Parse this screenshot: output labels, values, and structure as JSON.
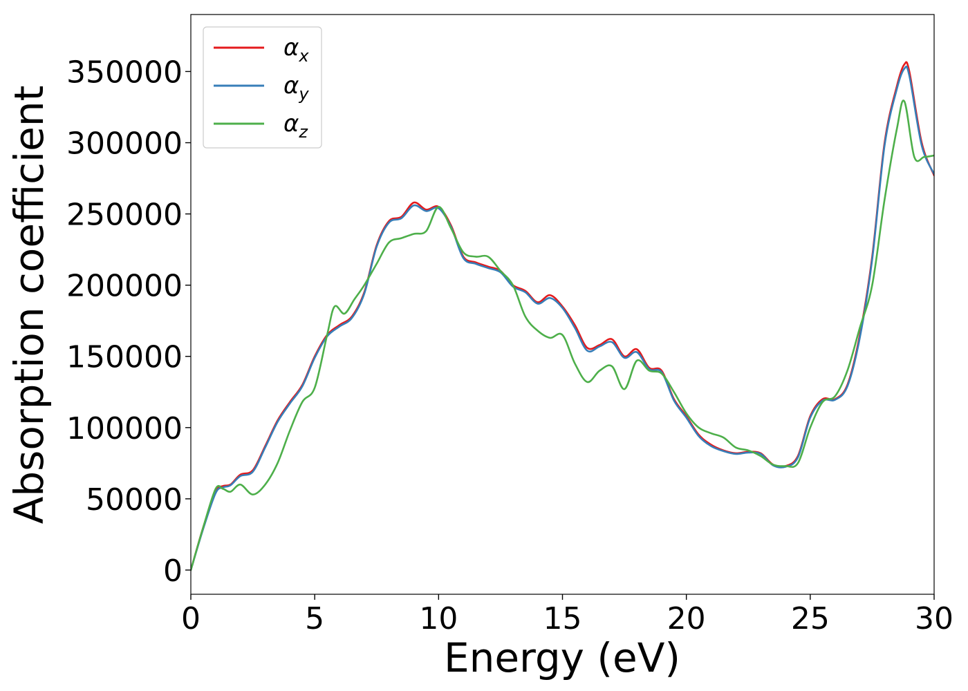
{
  "chart_data": {
    "type": "line",
    "title": "",
    "xlabel": "Energy (eV)",
    "ylabel": "Absorption coefficient",
    "xlim": [
      0,
      30
    ],
    "ylim": [
      -17000,
      390000
    ],
    "x_ticks": [
      0,
      5,
      10,
      15,
      20,
      25,
      30
    ],
    "x_tick_labels": [
      "0",
      "5",
      "10",
      "15",
      "20",
      "25",
      "30"
    ],
    "y_ticks": [
      0,
      50000,
      100000,
      150000,
      200000,
      250000,
      300000,
      350000
    ],
    "y_tick_labels": [
      "0",
      "50000",
      "100000",
      "150000",
      "200000",
      "250000",
      "300000",
      "350000"
    ],
    "grid": false,
    "legend_position": "top-left",
    "series": [
      {
        "name": "α_x",
        "label_main": "α",
        "label_sub": "x",
        "color": "#e41a1c",
        "x": [
          0,
          0.5,
          1,
          1.3,
          1.6,
          2,
          2.5,
          3,
          3.5,
          4,
          4.5,
          5,
          5.5,
          6,
          6.5,
          7,
          7.5,
          8,
          8.5,
          9,
          9.5,
          10,
          10.5,
          11,
          11.5,
          12,
          12.5,
          13,
          13.5,
          14,
          14.5,
          15,
          15.5,
          16,
          16.5,
          17,
          17.5,
          18,
          18.5,
          19,
          19.5,
          20,
          20.5,
          21,
          21.5,
          22,
          22.5,
          23,
          23.5,
          24,
          24.5,
          25,
          25.5,
          26,
          26.5,
          27,
          27.5,
          28,
          28.5,
          28.8,
          29,
          29.5,
          30
        ],
        "y": [
          0,
          30000,
          55000,
          59000,
          60000,
          67000,
          70000,
          87000,
          105000,
          118000,
          130000,
          150000,
          165000,
          172000,
          178000,
          195000,
          228000,
          245000,
          248000,
          258000,
          253000,
          255000,
          242000,
          220000,
          216000,
          213000,
          210000,
          200000,
          196000,
          188000,
          193000,
          185000,
          172000,
          156000,
          158000,
          162000,
          150000,
          155000,
          142000,
          140000,
          120000,
          108000,
          95000,
          88000,
          84000,
          82000,
          83000,
          82000,
          74000,
          73000,
          80000,
          108000,
          120000,
          120000,
          130000,
          165000,
          220000,
          300000,
          340000,
          355000,
          350000,
          300000,
          277000
        ]
      },
      {
        "name": "α_y",
        "label_main": "α",
        "label_sub": "y",
        "color": "#377eb8",
        "x": [
          0,
          0.5,
          1,
          1.3,
          1.6,
          2,
          2.5,
          3,
          3.5,
          4,
          4.5,
          5,
          5.5,
          6,
          6.5,
          7,
          7.5,
          8,
          8.5,
          9,
          9.5,
          10,
          10.5,
          11,
          11.5,
          12,
          12.5,
          13,
          13.5,
          14,
          14.5,
          15,
          15.5,
          16,
          16.5,
          17,
          17.5,
          18,
          18.5,
          19,
          19.5,
          20,
          20.5,
          21,
          21.5,
          22,
          22.5,
          23,
          23.5,
          24,
          24.5,
          25,
          25.5,
          26,
          26.5,
          27,
          27.5,
          28,
          28.5,
          28.8,
          29,
          29.5,
          30
        ],
        "y": [
          0,
          29000,
          54000,
          58000,
          59500,
          66000,
          69000,
          86000,
          104000,
          117000,
          129000,
          149000,
          164000,
          171000,
          177000,
          194000,
          227000,
          244000,
          247000,
          256000,
          252000,
          254000,
          241000,
          219000,
          215000,
          212000,
          209000,
          199000,
          195000,
          187000,
          191000,
          184000,
          170000,
          154000,
          157000,
          160000,
          149000,
          153000,
          141000,
          139000,
          119000,
          107000,
          94000,
          87000,
          83500,
          81500,
          82500,
          81500,
          73500,
          72500,
          79000,
          107000,
          119000,
          119500,
          129000,
          163000,
          218000,
          298000,
          338000,
          352000,
          347000,
          298000,
          278000
        ]
      },
      {
        "name": "α_z",
        "label_main": "α",
        "label_sub": "z",
        "color": "#4daf4a",
        "x": [
          0,
          0.5,
          1,
          1.3,
          1.6,
          2,
          2.5,
          3,
          3.5,
          4,
          4.5,
          5,
          5.5,
          5.8,
          6.2,
          6.6,
          7,
          7.5,
          8,
          8.5,
          9,
          9.5,
          10,
          10.5,
          11,
          11.5,
          12,
          12.5,
          13,
          13.5,
          14,
          14.5,
          15,
          15.5,
          16,
          16.5,
          17,
          17.5,
          18,
          18.5,
          19,
          19.5,
          20,
          20.5,
          21,
          21.5,
          22,
          22.5,
          23,
          23.5,
          24,
          24.5,
          25,
          25.5,
          26,
          26.5,
          27,
          27.5,
          28,
          28.5,
          28.8,
          29.2,
          29.6,
          30
        ],
        "y": [
          0,
          30000,
          57000,
          57000,
          55000,
          60000,
          53000,
          60000,
          75000,
          98000,
          118000,
          128000,
          165000,
          185000,
          180000,
          190000,
          200000,
          215000,
          230000,
          233000,
          236000,
          238000,
          255000,
          240000,
          223000,
          220000,
          220000,
          210000,
          200000,
          178000,
          168000,
          163000,
          165000,
          145000,
          132000,
          140000,
          143000,
          127000,
          147000,
          140000,
          138000,
          125000,
          110000,
          100000,
          96000,
          93000,
          86000,
          84000,
          80000,
          74000,
          73000,
          75000,
          100000,
          118000,
          122000,
          140000,
          170000,
          200000,
          260000,
          310000,
          329000,
          290000,
          290000,
          291000
        ]
      }
    ]
  }
}
